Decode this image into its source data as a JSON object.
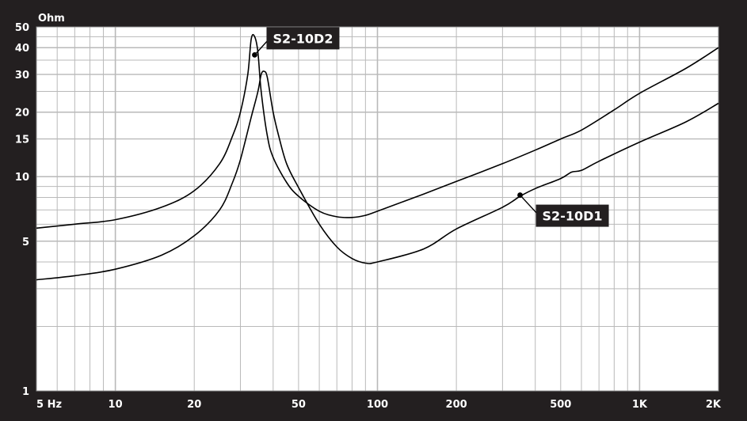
{
  "chart_data": {
    "type": "line",
    "y_unit": "Ohm",
    "x_scale": "log",
    "y_scale": "log",
    "xlim": [
      5,
      2000
    ],
    "ylim": [
      1,
      50
    ],
    "x_ticks": [
      {
        "value": 5,
        "label": "5 Hz"
      },
      {
        "value": 10,
        "label": "10"
      },
      {
        "value": 20,
        "label": "20"
      },
      {
        "value": 50,
        "label": "50"
      },
      {
        "value": 100,
        "label": "100"
      },
      {
        "value": 200,
        "label": "200"
      },
      {
        "value": 500,
        "label": "500"
      },
      {
        "value": 1000,
        "label": "1K"
      },
      {
        "value": 2000,
        "label": "2K"
      }
    ],
    "y_ticks": [
      {
        "value": 1,
        "label": "1"
      },
      {
        "value": 5,
        "label": "5"
      },
      {
        "value": 10,
        "label": "10"
      },
      {
        "value": 15,
        "label": "15"
      },
      {
        "value": 20,
        "label": "20"
      },
      {
        "value": 30,
        "label": "30"
      },
      {
        "value": 40,
        "label": "40"
      },
      {
        "value": 50,
        "label": "50"
      }
    ],
    "grid": true,
    "colors": {
      "background": "#231f20",
      "plot": "#ffffff",
      "grid": "#b9b9b9",
      "line": "#000000",
      "callout": "#231f20"
    },
    "series": [
      {
        "name": "S2-10D2",
        "points": [
          [
            5,
            5.75
          ],
          [
            7,
            6.0
          ],
          [
            10,
            6.3
          ],
          [
            15,
            7.2
          ],
          [
            20,
            8.6
          ],
          [
            25,
            11.5
          ],
          [
            28,
            15.5
          ],
          [
            30,
            20
          ],
          [
            32,
            30
          ],
          [
            33,
            44
          ],
          [
            34,
            45
          ],
          [
            35,
            38
          ],
          [
            36,
            25
          ],
          [
            38,
            15.5
          ],
          [
            40,
            12.3
          ],
          [
            45,
            9.4
          ],
          [
            50,
            8.1
          ],
          [
            60,
            6.9
          ],
          [
            70,
            6.5
          ],
          [
            80,
            6.45
          ],
          [
            90,
            6.6
          ],
          [
            100,
            6.9
          ],
          [
            150,
            8.3
          ],
          [
            200,
            9.5
          ],
          [
            300,
            11.5
          ],
          [
            400,
            13.3
          ],
          [
            500,
            15.0
          ],
          [
            600,
            16.5
          ],
          [
            800,
            20.5
          ],
          [
            1000,
            24.5
          ],
          [
            1500,
            32
          ],
          [
            2000,
            40
          ]
        ],
        "marker": [
          34,
          37
        ],
        "label_position": "top-right of peak"
      },
      {
        "name": "S2-10D1",
        "points": [
          [
            5,
            3.3
          ],
          [
            7,
            3.45
          ],
          [
            10,
            3.7
          ],
          [
            15,
            4.3
          ],
          [
            20,
            5.3
          ],
          [
            25,
            7.0
          ],
          [
            28,
            9.4
          ],
          [
            30,
            12
          ],
          [
            33,
            19
          ],
          [
            35,
            25
          ],
          [
            36,
            30
          ],
          [
            37,
            31
          ],
          [
            38,
            29
          ],
          [
            40,
            20
          ],
          [
            42,
            15.5
          ],
          [
            45,
            11.5
          ],
          [
            50,
            8.9
          ],
          [
            60,
            6.0
          ],
          [
            70,
            4.7
          ],
          [
            80,
            4.15
          ],
          [
            90,
            3.95
          ],
          [
            100,
            4.0
          ],
          [
            150,
            4.6
          ],
          [
            200,
            5.7
          ],
          [
            300,
            7.2
          ],
          [
            350,
            8.1
          ],
          [
            400,
            8.8
          ],
          [
            500,
            9.8
          ],
          [
            550,
            10.5
          ],
          [
            600,
            10.7
          ],
          [
            700,
            11.8
          ],
          [
            1000,
            14.5
          ],
          [
            1500,
            18
          ],
          [
            2000,
            22
          ]
        ],
        "marker": [
          350,
          8.2
        ],
        "label_position": "bottom-right"
      }
    ]
  }
}
